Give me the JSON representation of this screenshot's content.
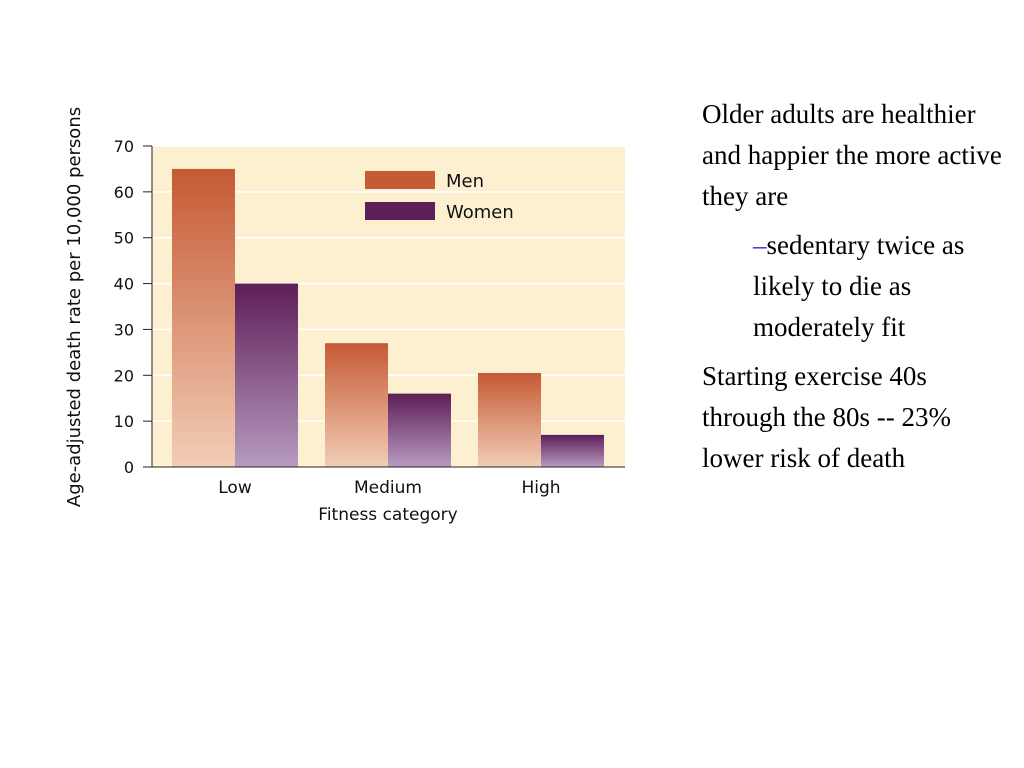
{
  "chart_data": {
    "type": "bar",
    "categories": [
      "Low",
      "Medium",
      "High"
    ],
    "series": [
      {
        "name": "Men",
        "values": [
          65,
          27,
          20.5
        ],
        "color": "#c55a34"
      },
      {
        "name": "Women",
        "values": [
          40,
          16,
          7
        ],
        "color": "#5e1e57"
      }
    ],
    "xlabel": "Fitness category",
    "ylabel": "Age-adjusted death rate per 10,000 persons",
    "ylim": [
      0,
      70
    ],
    "yticks": [
      0,
      10,
      20,
      30,
      40,
      50,
      60,
      70
    ],
    "grid": true,
    "legend": "top-center",
    "background_color": "#fdf0d0",
    "grid_color": "#ffffff"
  },
  "text": {
    "bullet1": "Older adults are healthier and happier the more active they are",
    "sub_dash": "–",
    "sub_bullet": "sedentary twice as likely to die as moderately fit",
    "bullet2": "Starting exercise 40s through the 80s -- 23% lower risk of death"
  }
}
